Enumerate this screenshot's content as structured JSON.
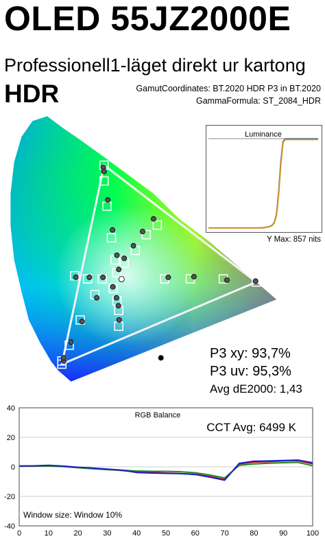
{
  "header": {
    "title": "OLED 55JZ2000E",
    "subtitle": "Professionell1-läget direkt ur kartong",
    "mode": "HDR"
  },
  "gamut_chart": {
    "gamut_coordinates": "GamutCoordinates: BT.2020 HDR P3 in BT.2020",
    "gamma_formula": "GammaFormula: ST_2084_HDR",
    "stats": {
      "p3_xy": "P3 xy: 93,7%",
      "p3_uv": "P3 uv: 95,3%",
      "avg_de": "Avg dE2000: 1,43"
    }
  },
  "luminance": {
    "title": "Luminance",
    "y_max": "Y Max: 857 nits"
  },
  "rgb_balance": {
    "title": "RGB Balance",
    "cct": "CCT Avg: 6499 K",
    "window": "Window size: Window 10%"
  },
  "colors": {
    "red": "#d01010",
    "green": "#1a8a1a",
    "blue": "#1c1cd0",
    "triangle": "#f4f4f4",
    "target_box": "#ffffff"
  },
  "chart_data": [
    {
      "type": "scatter",
      "description_key": "gamut",
      "triangle": [
        [
          0.68,
          0.32
        ],
        [
          0.265,
          0.69
        ],
        [
          0.15,
          0.06
        ]
      ],
      "targets": [
        [
          0.68,
          0.32
        ],
        [
          0.265,
          0.69
        ],
        [
          0.15,
          0.06
        ],
        [
          0.265,
          0.64
        ],
        [
          0.273,
          0.56
        ],
        [
          0.285,
          0.46
        ],
        [
          0.295,
          0.39
        ],
        [
          0.3,
          0.35
        ],
        [
          0.41,
          0.5
        ],
        [
          0.38,
          0.47
        ],
        [
          0.35,
          0.42
        ],
        [
          0.32,
          0.38
        ],
        [
          0.43,
          0.33
        ],
        [
          0.5,
          0.33
        ],
        [
          0.59,
          0.33
        ],
        [
          0.185,
          0.34
        ],
        [
          0.22,
          0.33
        ],
        [
          0.26,
          0.33
        ],
        [
          0.29,
          0.3
        ],
        [
          0.3,
          0.26
        ],
        [
          0.305,
          0.23
        ],
        [
          0.305,
          0.18
        ],
        [
          0.24,
          0.28
        ],
        [
          0.2,
          0.2
        ],
        [
          0.17,
          0.12
        ],
        [
          0.15,
          0.07
        ]
      ],
      "measured": [
        [
          0.678,
          0.323
        ],
        [
          0.263,
          0.683
        ],
        [
          0.155,
          0.07
        ],
        [
          0.265,
          0.67
        ],
        [
          0.275,
          0.58
        ],
        [
          0.288,
          0.485
        ],
        [
          0.3,
          0.405
        ],
        [
          0.305,
          0.36
        ],
        [
          0.4,
          0.52
        ],
        [
          0.37,
          0.48
        ],
        [
          0.345,
          0.435
        ],
        [
          0.32,
          0.395
        ],
        [
          0.44,
          0.335
        ],
        [
          0.51,
          0.337
        ],
        [
          0.6,
          0.326
        ],
        [
          0.188,
          0.335
        ],
        [
          0.225,
          0.335
        ],
        [
          0.262,
          0.335
        ],
        [
          0.289,
          0.305
        ],
        [
          0.299,
          0.27
        ],
        [
          0.304,
          0.245
        ],
        [
          0.306,
          0.2
        ],
        [
          0.245,
          0.27
        ],
        [
          0.205,
          0.195
        ],
        [
          0.175,
          0.13
        ],
        [
          0.155,
          0.08
        ]
      ],
      "white_point": [
        0.3127,
        0.329
      ],
      "black_dot": [
        0.42,
        0.08
      ],
      "xlim": [
        0,
        0.8
      ],
      "ylim": [
        0,
        0.9
      ]
    },
    {
      "type": "line",
      "description_key": "luminance",
      "x": [
        0,
        5,
        10,
        15,
        20,
        25,
        30,
        35,
        40,
        45,
        50,
        52,
        54,
        56,
        58,
        60,
        62,
        64,
        66,
        68,
        70,
        75,
        80,
        90,
        100
      ],
      "series": [
        {
          "values": [
            0,
            0,
            0,
            0,
            0,
            0,
            0,
            0,
            0,
            0,
            0.3,
            0.6,
            1.0,
            1.8,
            3.0,
            6,
            15,
            40,
            75,
            97,
            100,
            100,
            100,
            100,
            100
          ]
        },
        {
          "values": [
            0,
            0,
            0,
            0,
            0,
            0,
            0,
            0,
            0,
            0,
            0.2,
            0.5,
            0.9,
            1.6,
            2.8,
            5.5,
            14,
            38,
            72,
            96,
            99,
            99,
            99,
            99,
            99
          ]
        }
      ]
    },
    {
      "type": "line",
      "description_key": "rgb_balance",
      "x": [
        0,
        5,
        10,
        15,
        20,
        25,
        30,
        35,
        40,
        45,
        50,
        55,
        60,
        65,
        70,
        75,
        80,
        85,
        90,
        95,
        100
      ],
      "series": [
        {
          "name": "red",
          "values": [
            0.5,
            0.6,
            0.8,
            0.3,
            -0.5,
            -1.2,
            -1.8,
            -2.5,
            -3.5,
            -3.8,
            -4.2,
            -4.5,
            -5.0,
            -6.5,
            -8.5,
            2.0,
            3.2,
            3.5,
            4.0,
            4.2,
            2.0
          ]
        },
        {
          "name": "green",
          "values": [
            0.4,
            0.5,
            0.6,
            0.2,
            -0.6,
            -1.3,
            -1.9,
            -2.3,
            -2.8,
            -3.0,
            -3.0,
            -3.3,
            -4.0,
            -5.5,
            -7.5,
            1.0,
            2.0,
            2.4,
            2.8,
            3.0,
            0.8
          ]
        },
        {
          "name": "blue",
          "values": [
            0.6,
            0.7,
            1.0,
            0.5,
            -0.3,
            -0.8,
            -1.5,
            -2.2,
            -3.8,
            -4.2,
            -4.4,
            -4.6,
            -5.2,
            -7.0,
            -9.0,
            2.4,
            3.8,
            4.0,
            4.3,
            4.6,
            2.8
          ]
        }
      ],
      "ylim": [
        -40,
        40
      ],
      "yticks": [
        -40,
        -20,
        0,
        20,
        40
      ],
      "xticks": [
        0,
        10,
        20,
        30,
        40,
        50,
        60,
        70,
        80,
        90,
        100
      ]
    }
  ]
}
